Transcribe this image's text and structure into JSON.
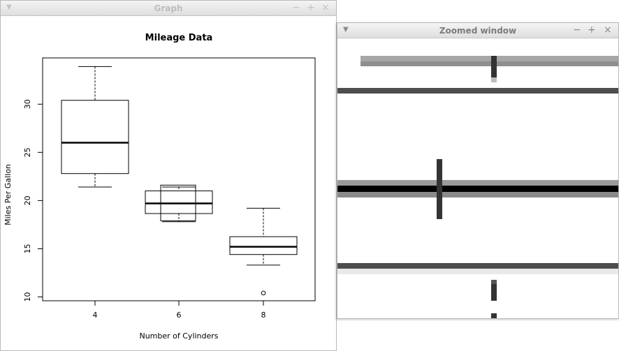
{
  "graph_window": {
    "title": "Graph",
    "menu_icon": "chevron-down-icon",
    "controls": [
      "−",
      "+",
      "×"
    ]
  },
  "zoom_window": {
    "title": "Zoomed window",
    "menu_icon": "chevron-down-icon",
    "controls": [
      "−",
      "+",
      "×"
    ]
  },
  "chart_data": {
    "type": "box",
    "title": "Mileage Data",
    "xlabel": "Number of Cylinders",
    "ylabel": "Miles Per Gallon",
    "categories": [
      "4",
      "6",
      "8"
    ],
    "yticks": [
      10,
      15,
      20,
      25,
      30
    ],
    "ylim": [
      9.6,
      34.8
    ],
    "grid": false,
    "boxes": [
      {
        "category": "4",
        "min": 21.4,
        "q1": 22.8,
        "median": 26.0,
        "q3": 30.4,
        "max": 33.9,
        "outliers": []
      },
      {
        "category": "6",
        "min": 17.8,
        "q1": 18.65,
        "median": 19.7,
        "q3": 21.0,
        "max": 21.4,
        "outliers": []
      },
      {
        "category": "8",
        "min": 13.3,
        "q1": 14.4,
        "median": 15.2,
        "q3": 16.25,
        "max": 19.2,
        "outliers": [
          10.4
        ]
      }
    ]
  }
}
